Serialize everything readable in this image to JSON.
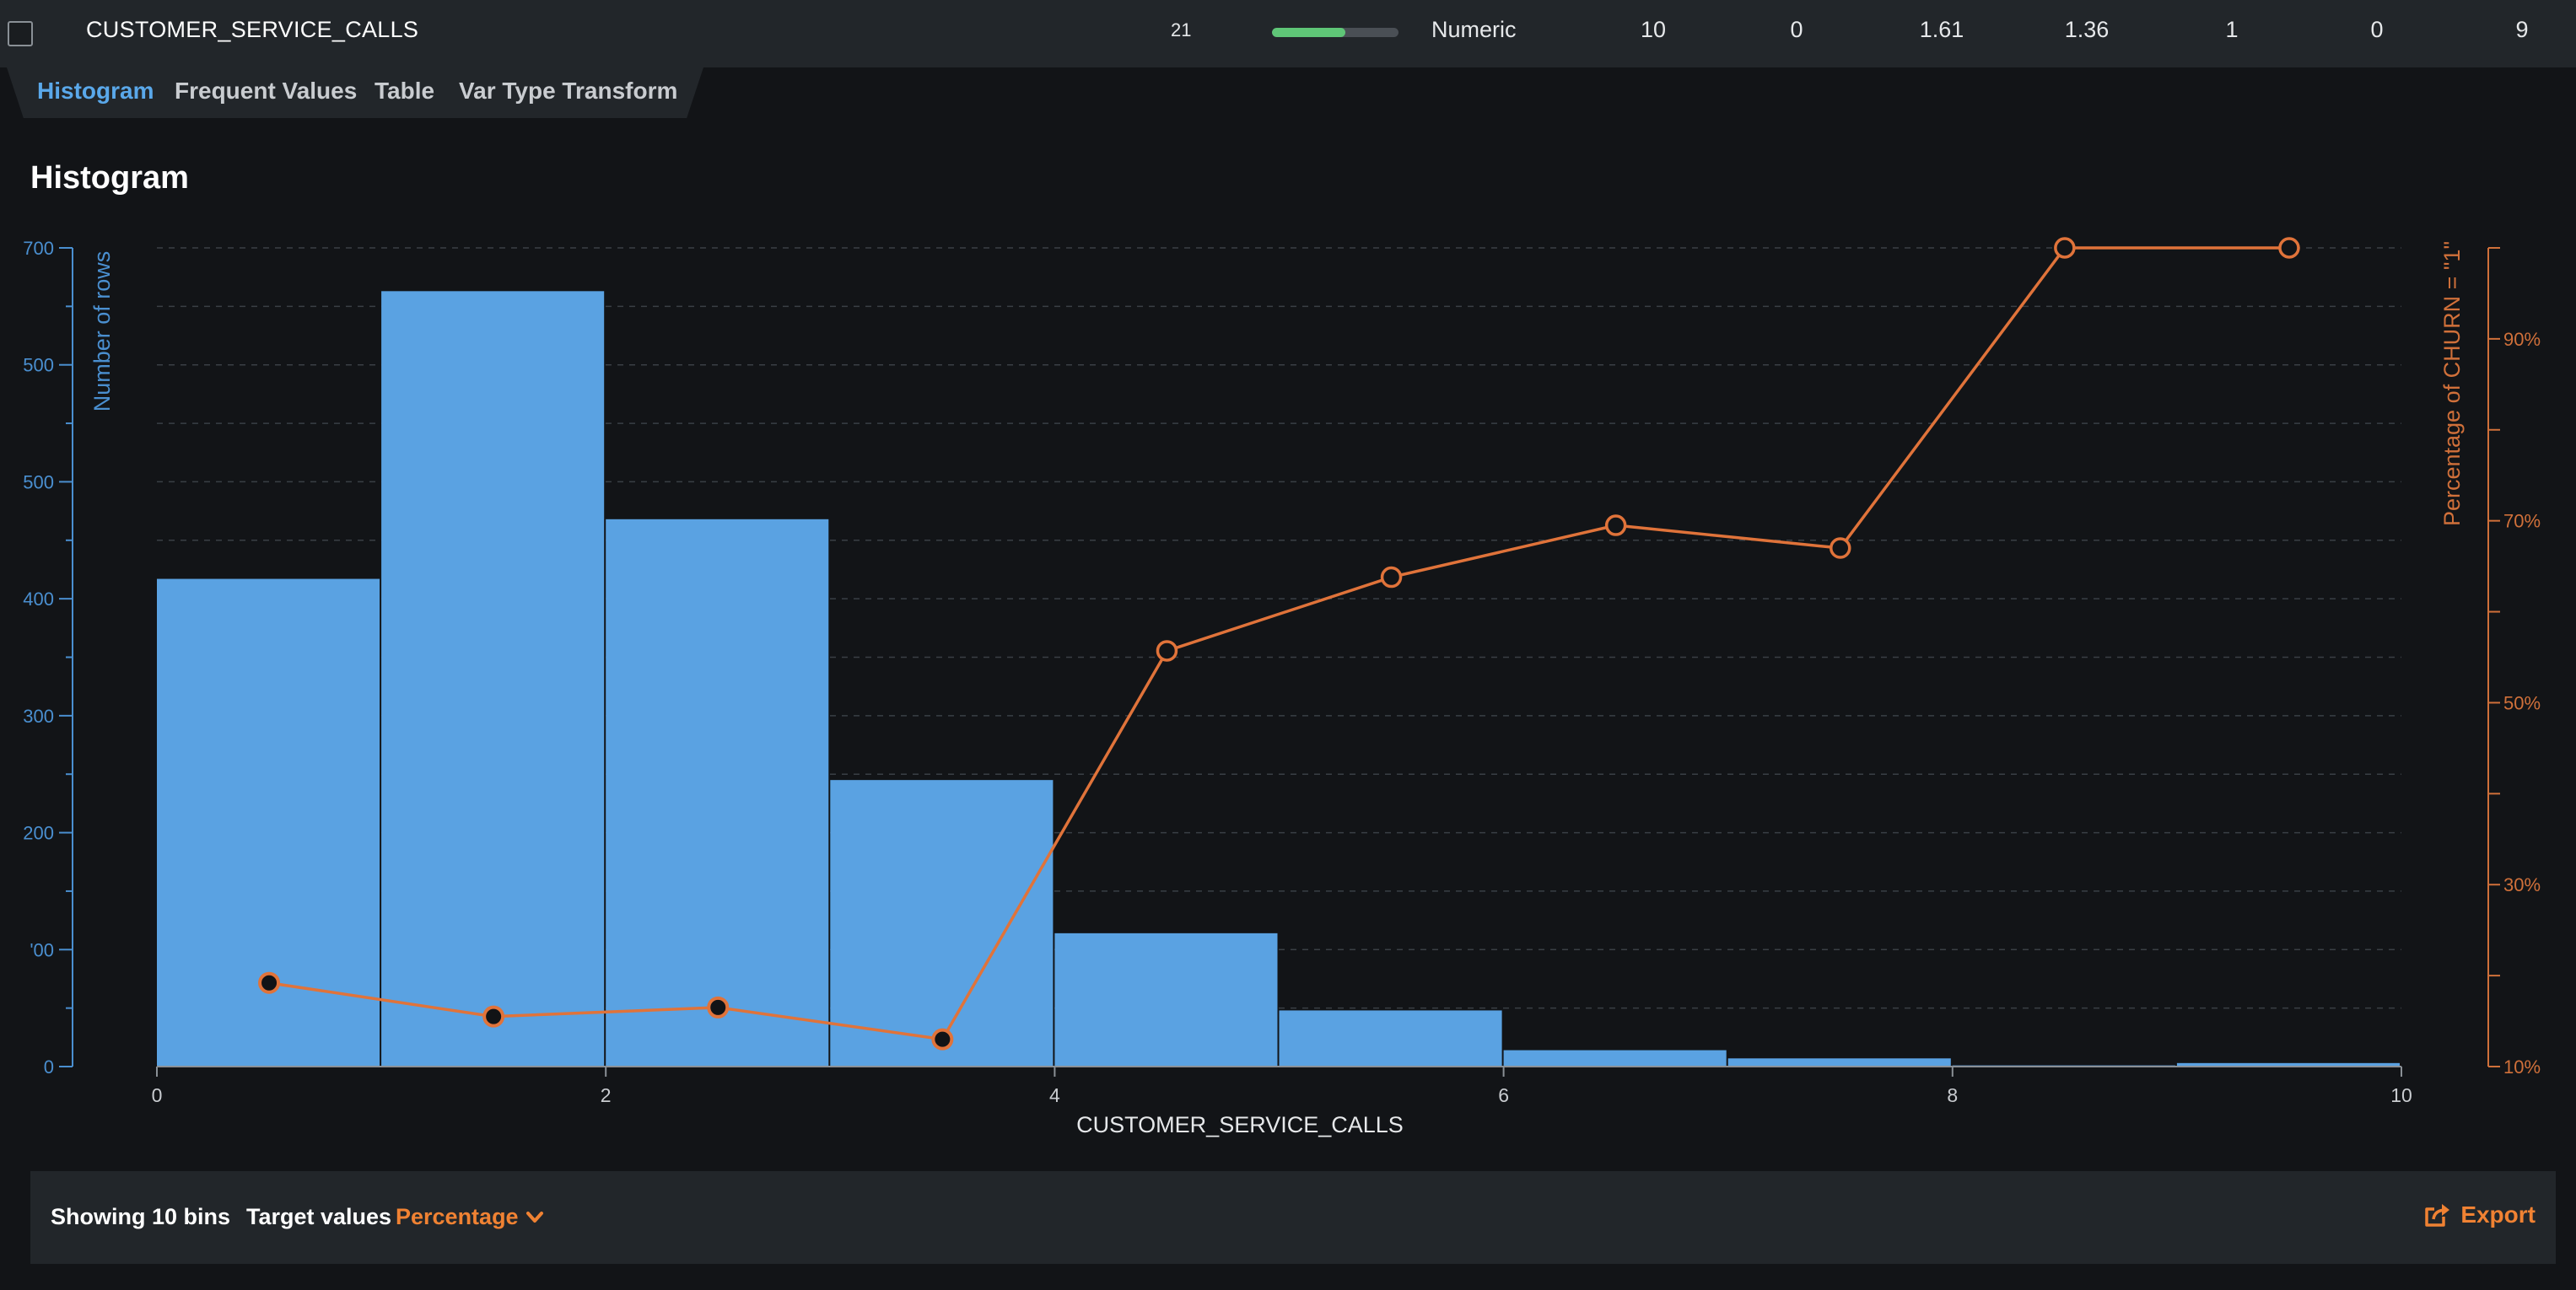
{
  "feature_row": {
    "name": "CUSTOMER_SERVICE_CALLS",
    "index": "21",
    "progress_fraction": 0.58,
    "type": "Numeric",
    "unique": "10",
    "missing": "0",
    "mean": "1.61",
    "std_dev": "1.36",
    "median": "1",
    "min": "0",
    "max": "9"
  },
  "tabs": [
    "Histogram",
    "Frequent Values",
    "Table",
    "Var Type Transform"
  ],
  "active_tab": "Histogram",
  "section_title": "Histogram",
  "colors": {
    "bar": "#5aa2e2",
    "line": "#e0733a",
    "left_axis": "#4a8fd0",
    "right_axis": "#d0703a",
    "accent_orange": "#f08233",
    "progress": "#5fc677"
  },
  "chart_data": {
    "type": "bar",
    "xlabel": "CUSTOMER_SERVICE_CALLS",
    "ylabel": "Number of rows",
    "y2label": "Percentage of CHURN = \"1\"",
    "xlim": [
      0,
      10
    ],
    "ylim": [
      0,
      700
    ],
    "y2lim": [
      10,
      100
    ],
    "x_ticks": [
      "0",
      "2",
      "4",
      "6",
      "8",
      "10"
    ],
    "y_tick_labels": [
      "0",
      "'00",
      "200",
      "300",
      "400",
      "500",
      "500",
      "700"
    ],
    "y2_tick_labels": [
      "10%",
      "30%",
      "50%",
      "70%",
      "90%"
    ],
    "bins": [
      [
        0,
        1
      ],
      [
        1,
        2
      ],
      [
        2,
        3
      ],
      [
        3,
        4
      ],
      [
        4,
        5
      ],
      [
        5,
        6
      ],
      [
        6,
        7
      ],
      [
        7,
        8
      ],
      [
        8,
        9
      ],
      [
        9,
        10
      ]
    ],
    "values": [
      417,
      663,
      468,
      245,
      114,
      48,
      14,
      7,
      1,
      3
    ],
    "line_x": [
      0.5,
      1.5,
      2.5,
      3.5,
      4.5,
      5.5,
      6.5,
      7.5,
      8.5,
      9.5
    ],
    "line_values": [
      19.2,
      15.5,
      16.5,
      13.0,
      55.7,
      63.8,
      69.5,
      67.0,
      100,
      100
    ],
    "line_filled": [
      true,
      true,
      true,
      true,
      false,
      false,
      false,
      false,
      false,
      false
    ],
    "grid": true
  },
  "bottom_bar": {
    "showing": "Showing 10 bins",
    "target_label": "Target values",
    "target_value": "Percentage",
    "export": "Export"
  }
}
